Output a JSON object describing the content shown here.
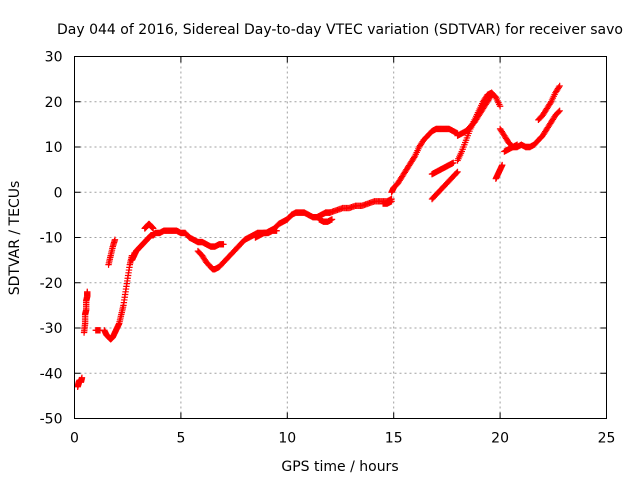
{
  "chart_data": {
    "type": "scatter",
    "title": "Day 044 of 2016, Sidereal Day-to-day VTEC variation (SDTVAR) for receiver savo",
    "xlabel": "GPS time / hours",
    "ylabel": "SDTVAR / TECUs",
    "xlim": [
      0,
      25
    ],
    "ylim": [
      -50,
      30
    ],
    "xticks": [
      "0",
      "5",
      "10",
      "15",
      "20",
      "25"
    ],
    "yticks": [
      "-50",
      "-40",
      "-30",
      "-20",
      "-10",
      "0",
      "10",
      "20",
      "30"
    ],
    "xtick_values": [
      0,
      5,
      10,
      15,
      20,
      25
    ],
    "ytick_values": [
      -50,
      -40,
      -30,
      -20,
      -10,
      0,
      10,
      20,
      30
    ],
    "grid": true,
    "marker": "+",
    "color": "#ff0000",
    "series": [
      {
        "name": "seg01",
        "x": [
          0.15,
          0.2,
          0.25,
          0.3,
          0.35
        ],
        "y": [
          -43,
          -42,
          -41.5,
          -42,
          -41
        ]
      },
      {
        "name": "seg02",
        "x": [
          0.45,
          0.5,
          0.5,
          0.55,
          0.55,
          0.6,
          0.6
        ],
        "y": [
          -31,
          -29,
          -27,
          -26,
          -24,
          -23,
          -22
        ]
      },
      {
        "name": "seg03",
        "x": [
          1.0,
          1.2
        ],
        "y": [
          -30.5,
          -30.5
        ]
      },
      {
        "name": "seg04",
        "x": [
          1.4,
          1.5,
          1.6,
          1.7,
          1.8,
          1.9,
          2.0,
          2.1,
          2.2,
          2.3,
          2.4,
          2.5,
          2.6,
          2.7
        ],
        "y": [
          -30.5,
          -31.5,
          -32,
          -32.5,
          -32,
          -31,
          -30,
          -29,
          -27,
          -25,
          -22,
          -19,
          -16,
          -14
        ]
      },
      {
        "name": "seg05",
        "x": [
          1.6,
          1.7,
          1.8,
          1.9
        ],
        "y": [
          -16,
          -14,
          -12,
          -10.5
        ]
      },
      {
        "name": "seg06",
        "x": [
          2.7,
          2.8,
          2.9,
          3.0,
          3.1,
          3.2,
          3.3,
          3.4,
          3.5,
          3.6,
          3.7,
          3.8,
          4.0,
          4.2,
          4.4,
          4.6,
          4.8,
          5.0,
          5.2,
          5.4,
          5.6,
          5.8,
          6.0,
          6.2,
          6.4,
          6.6,
          6.8,
          7.0
        ],
        "y": [
          -15,
          -14,
          -13,
          -12.5,
          -12,
          -11.5,
          -11,
          -10.5,
          -10,
          -9.5,
          -9.5,
          -9,
          -9,
          -8.5,
          -8.5,
          -8.5,
          -8.5,
          -9,
          -9,
          -10,
          -10.5,
          -11,
          -11,
          -11.5,
          -12,
          -12,
          -11.5,
          -11.5
        ]
      },
      {
        "name": "seg07",
        "x": [
          3.3,
          3.4,
          3.5,
          3.6,
          3.7
        ],
        "y": [
          -8,
          -7.5,
          -7,
          -7.5,
          -8
        ]
      },
      {
        "name": "seg08",
        "x": [
          5.8,
          6.0,
          6.2,
          6.4,
          6.5,
          6.6,
          6.8,
          7.0,
          7.2,
          7.4,
          7.6,
          7.8,
          8.0,
          8.2,
          8.4,
          8.6,
          8.8,
          9.0,
          9.2,
          9.4,
          9.6,
          9.8,
          10.0,
          10.2,
          10.4,
          10.6,
          10.8,
          11.0,
          11.2,
          11.4,
          11.6,
          11.8,
          12.0
        ],
        "y": [
          -13,
          -14,
          -15.5,
          -16.5,
          -17,
          -17,
          -16.5,
          -15.5,
          -14.5,
          -13.5,
          -12.5,
          -11.5,
          -10.5,
          -10,
          -9.5,
          -9,
          -9,
          -9,
          -8.5,
          -8,
          -7,
          -6.5,
          -6,
          -5,
          -4.5,
          -4.5,
          -4.5,
          -5,
          -5.5,
          -5.5,
          -5,
          -4.5,
          -4.5
        ]
      },
      {
        "name": "seg09",
        "x": [
          8.5,
          8.7,
          8.9,
          9.1,
          9.3,
          9.5
        ],
        "y": [
          -10,
          -9.5,
          -9,
          -9,
          -8.5,
          -8.5
        ]
      },
      {
        "name": "seg10",
        "x": [
          11.5,
          11.7,
          11.9,
          12.1
        ],
        "y": [
          -6,
          -6.5,
          -6.5,
          -6
        ]
      },
      {
        "name": "seg11",
        "x": [
          12.0,
          12.3,
          12.6,
          12.9,
          13.2,
          13.5,
          13.8,
          14.1,
          14.4,
          14.7,
          14.9
        ],
        "y": [
          -4.5,
          -4,
          -3.5,
          -3.5,
          -3,
          -3,
          -2.5,
          -2,
          -2,
          -2,
          -1.5
        ]
      },
      {
        "name": "seg12",
        "x": [
          14.5,
          14.7,
          14.9
        ],
        "y": [
          -2.5,
          -2.5,
          -2
        ]
      },
      {
        "name": "seg13",
        "x": [
          14.9,
          15.0,
          15.2,
          15.4,
          15.6,
          15.8,
          16.0,
          16.2,
          16.4,
          16.6,
          16.8,
          17.0,
          17.2,
          17.4,
          17.6,
          17.8,
          18.0
        ],
        "y": [
          0,
          1,
          2,
          3.5,
          5,
          6.5,
          8,
          10,
          11.5,
          12.5,
          13.5,
          14,
          14,
          14,
          14,
          13.5,
          13
        ]
      },
      {
        "name": "seg14",
        "x": [
          16.8,
          17.0,
          17.2,
          17.4,
          17.6,
          17.8
        ],
        "y": [
          4,
          4.5,
          5,
          5.5,
          6,
          6.5
        ]
      },
      {
        "name": "seg15",
        "x": [
          16.8,
          17.0,
          17.2,
          17.4,
          17.6,
          17.8,
          18.0
        ],
        "y": [
          -1.5,
          -0.5,
          0.5,
          1.5,
          2.5,
          3.5,
          4.5
        ]
      },
      {
        "name": "seg16",
        "x": [
          18.0,
          18.2,
          18.4,
          18.6,
          18.8,
          19.0,
          19.2,
          19.4,
          19.6,
          19.8,
          20.0
        ],
        "y": [
          7,
          9,
          11.5,
          14,
          16,
          18,
          20,
          21.5,
          22,
          21,
          19
        ]
      },
      {
        "name": "seg17",
        "x": [
          18.0,
          18.2,
          18.4,
          18.6,
          18.8,
          19.0,
          19.2,
          19.4,
          19.6
        ],
        "y": [
          12.5,
          13,
          13.5,
          14.5,
          15.5,
          17,
          18.5,
          20,
          21.5
        ]
      },
      {
        "name": "seg18",
        "x": [
          19.8,
          19.9,
          20.0,
          20.1
        ],
        "y": [
          3,
          4,
          5,
          6
        ]
      },
      {
        "name": "seg19",
        "x": [
          20.0,
          20.2,
          20.4,
          20.6,
          20.8,
          21.0,
          21.2,
          21.4,
          21.6,
          21.8,
          22.0,
          22.2,
          22.4,
          22.6,
          22.8
        ],
        "y": [
          14,
          12.5,
          11,
          10,
          10,
          10.5,
          10,
          10,
          10.5,
          11.5,
          12.5,
          14,
          15.5,
          17,
          18
        ]
      },
      {
        "name": "seg20",
        "x": [
          20.2,
          20.4,
          20.6,
          20.8
        ],
        "y": [
          9,
          9.5,
          10,
          10.5
        ]
      },
      {
        "name": "seg21",
        "x": [
          21.8,
          22.0,
          22.2,
          22.4,
          22.6,
          22.8
        ],
        "y": [
          16,
          17,
          18.5,
          20,
          22,
          23.5
        ]
      }
    ]
  }
}
